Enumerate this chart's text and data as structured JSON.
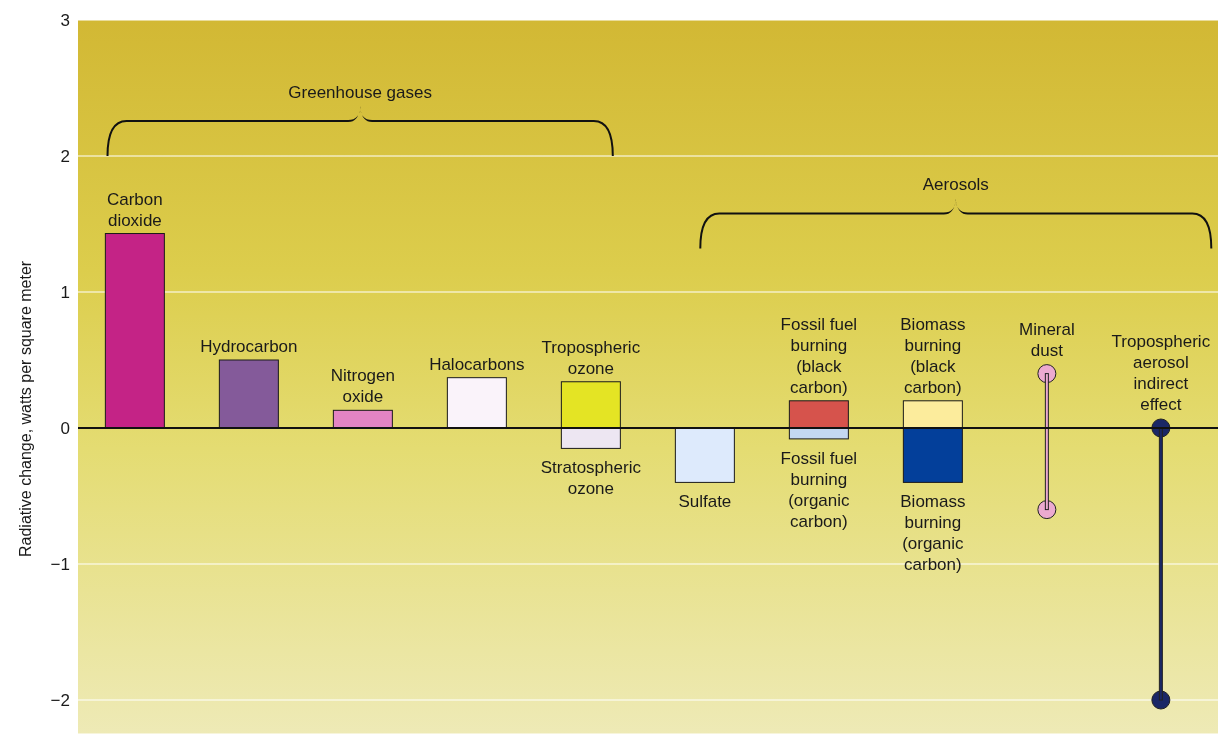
{
  "chart_data": {
    "type": "bar",
    "stacked": true,
    "ylabel": "Radiative change, watts per square meter",
    "categories": [
      null,
      null,
      null,
      null,
      null,
      null,
      null,
      null,
      null,
      null
    ],
    "series": [
      {
        "name": "Carbon dioxide",
        "color": "#c42386",
        "values": [
          1.43,
          null,
          null,
          null,
          null,
          null,
          null,
          null,
          null,
          null
        ]
      },
      {
        "name": "Hydrocarbon",
        "color": "#845a9a",
        "values": [
          null,
          0.5,
          null,
          null,
          null,
          null,
          null,
          null,
          null,
          null
        ]
      },
      {
        "name": "Nitrogen oxide",
        "color": "#e384c4",
        "values": [
          null,
          null,
          0.13,
          null,
          null,
          null,
          null,
          null,
          null,
          null
        ]
      },
      {
        "name": "Halocarbons",
        "color": "#faf3fa",
        "values": [
          null,
          null,
          null,
          0.37,
          null,
          null,
          null,
          null,
          null,
          null
        ]
      },
      {
        "name": "Tropospheric ozone",
        "color": "#e4e424",
        "values": [
          null,
          null,
          null,
          null,
          0.34,
          null,
          null,
          null,
          null,
          null
        ]
      },
      {
        "name": "Stratospheric ozone",
        "color": "#ede6f2",
        "values": [
          null,
          null,
          null,
          null,
          -0.15,
          null,
          null,
          null,
          null,
          null
        ]
      },
      {
        "name": "Sulfate",
        "color": "#ddeafc",
        "values": [
          null,
          null,
          null,
          null,
          null,
          -0.4,
          null,
          null,
          null,
          null
        ]
      },
      {
        "name": "Fossil fuel burning (black carbon)",
        "color": "#d6534c",
        "values": [
          null,
          null,
          null,
          null,
          null,
          null,
          0.2,
          null,
          null,
          null
        ]
      },
      {
        "name": "Fossil fuel burning (organic carbon)",
        "color": "#c4d8f2",
        "values": [
          null,
          null,
          null,
          null,
          null,
          null,
          -0.08,
          null,
          null,
          null
        ]
      },
      {
        "name": "Biomass burning (black carbon)",
        "color": "#fcec9c",
        "values": [
          null,
          null,
          null,
          null,
          null,
          null,
          null,
          0.2,
          null,
          null
        ]
      },
      {
        "name": "Biomass burning (organic carbon)",
        "color": "#033f9a",
        "values": [
          null,
          null,
          null,
          null,
          null,
          null,
          null,
          -0.4,
          null,
          null
        ]
      },
      {
        "name": "Mineral dust",
        "color": "#ecaad0",
        "marker": "circle",
        "values": [
          null,
          null,
          null,
          null,
          null,
          null,
          null,
          null,
          1.0,
          null
        ],
        "base": [
          null,
          null,
          null,
          null,
          null,
          null,
          null,
          null,
          -0.6,
          null
        ]
      },
      {
        "name": "Tropospheric aerosol indirect effect",
        "color": "#1a2766",
        "marker": "circle",
        "values": [
          null,
          null,
          null,
          null,
          null,
          null,
          null,
          null,
          null,
          2.0
        ],
        "base": [
          null,
          null,
          null,
          null,
          null,
          null,
          null,
          null,
          null,
          -2.0
        ]
      }
    ],
    "ylim": [
      -2.25,
      3
    ],
    "yticks": [
      {
        "value": -2,
        "label": "−2"
      },
      {
        "value": -1,
        "label": "−1"
      },
      0,
      1,
      2,
      3
    ],
    "grid": "y",
    "ref_lines": [
      {
        "axis": "y",
        "value": 0,
        "color": "#111111"
      }
    ],
    "annotations": [
      "Greenhouse gases",
      "Aerosols"
    ]
  }
}
